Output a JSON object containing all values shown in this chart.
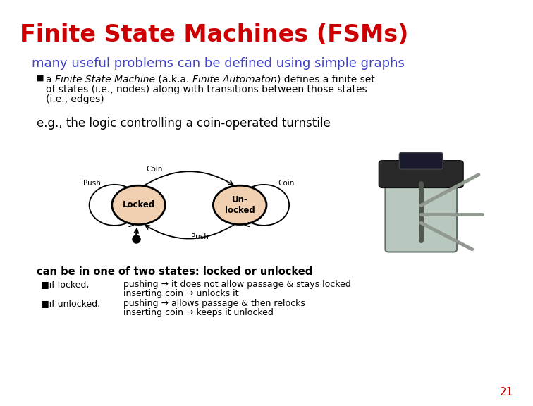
{
  "title": "Finite State Machines (FSMs)",
  "title_color": "#cc0000",
  "subtitle": "many useful problems can be defined using simple graphs",
  "subtitle_color": "#4040cc",
  "bullet1_prefix": "a ",
  "bullet1_italic1": "Finite State Machine",
  "bullet1_mid": " (a.k.a. ",
  "bullet1_italic2": "Finite Automaton",
  "eg_text": "e.g., the logic controlling a coin-operated turnstile",
  "can_be_text": "can be in one of two states: locked or unlocked",
  "locked_line1": "pushing -> it does not allow passage & stays locked",
  "locked_line2": "inserting coin -> unlocks it",
  "unlocked_line1": "pushing -> allows passage & then relocks",
  "unlocked_line2": "inserting coin -> keeps it unlocked",
  "page_num": "21",
  "bg_color": "#ffffff",
  "node_fill": "#f0d0b0",
  "node_edge": "#000000",
  "text_color": "#000000"
}
